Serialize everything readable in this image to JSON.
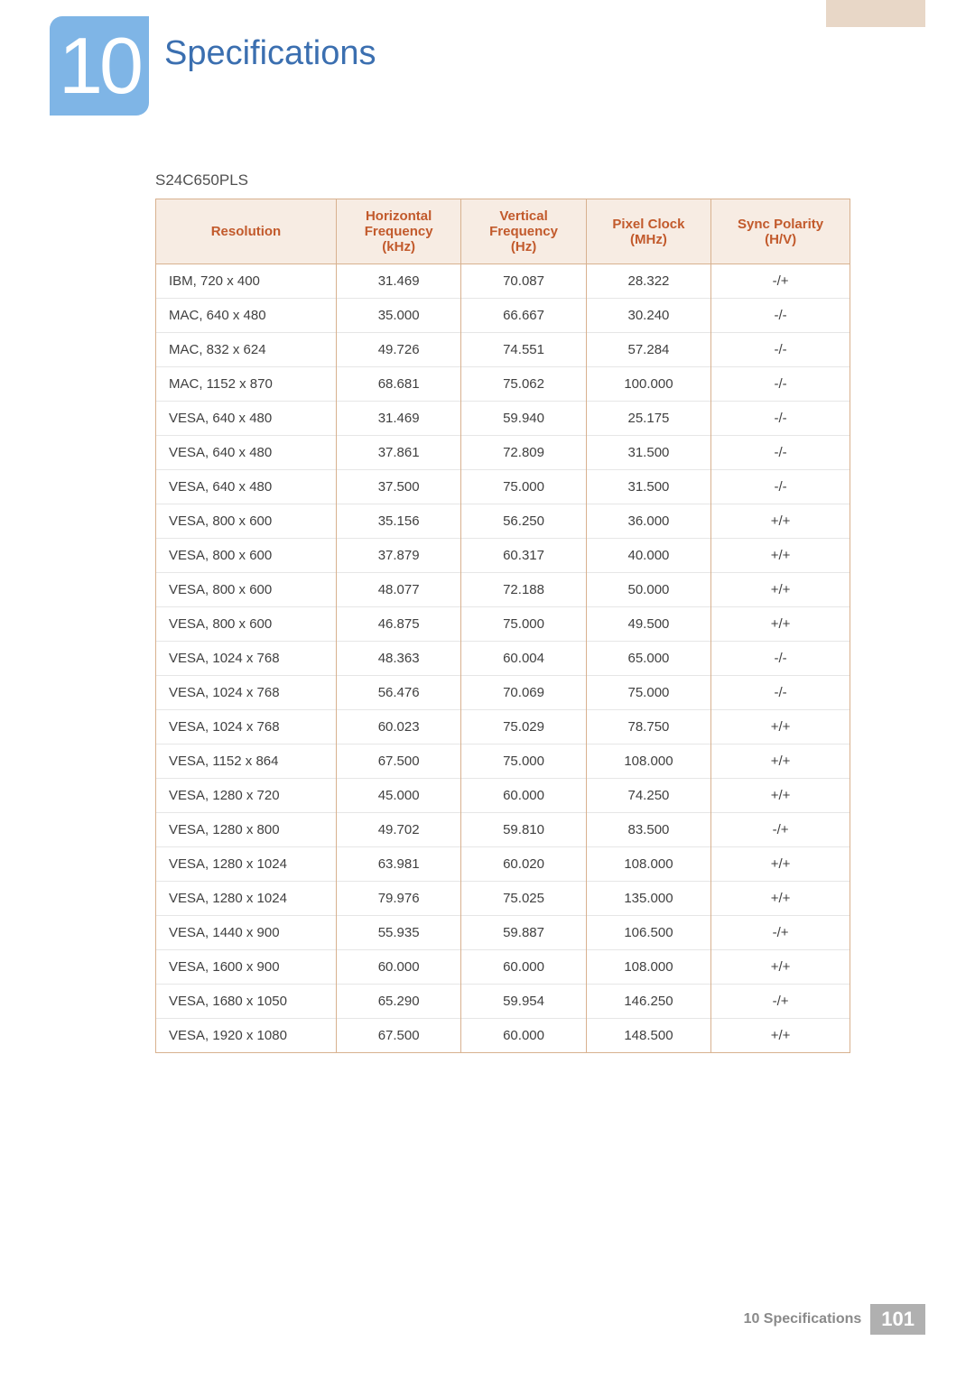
{
  "header": {
    "chapter_number": "10",
    "chapter_title": "Specifications",
    "chapter_block_bg": "#7fb5e6",
    "chapter_title_color": "#3b6fb0",
    "top_accent_bg": "#e8d7c7"
  },
  "model": "S24C650PLS",
  "table": {
    "header_bg": "#f7ece3",
    "header_text_color": "#c25a2c",
    "border_color": "#d8b18f",
    "row_divider_color": "#e6e6e6",
    "columns": [
      {
        "label_line1": "Resolution",
        "label_line2": "",
        "label_line3": "",
        "width_pct": 26,
        "align": "left"
      },
      {
        "label_line1": "Horizontal",
        "label_line2": "Frequency",
        "label_line3": "(kHz)",
        "width_pct": 18,
        "align": "center"
      },
      {
        "label_line1": "Vertical",
        "label_line2": "Frequency",
        "label_line3": "(Hz)",
        "width_pct": 18,
        "align": "center"
      },
      {
        "label_line1": "Pixel Clock",
        "label_line2": "(MHz)",
        "label_line3": "",
        "width_pct": 18,
        "align": "center"
      },
      {
        "label_line1": "Sync Polarity",
        "label_line2": "(H/V)",
        "label_line3": "",
        "width_pct": 20,
        "align": "center"
      }
    ],
    "rows": [
      [
        "IBM, 720 x 400",
        "31.469",
        "70.087",
        "28.322",
        "-/+"
      ],
      [
        "MAC, 640 x 480",
        "35.000",
        "66.667",
        "30.240",
        "-/-"
      ],
      [
        "MAC, 832 x 624",
        "49.726",
        "74.551",
        "57.284",
        "-/-"
      ],
      [
        "MAC, 1152 x 870",
        "68.681",
        "75.062",
        "100.000",
        "-/-"
      ],
      [
        "VESA, 640 x 480",
        "31.469",
        "59.940",
        "25.175",
        "-/-"
      ],
      [
        "VESA, 640 x 480",
        "37.861",
        "72.809",
        "31.500",
        "-/-"
      ],
      [
        "VESA, 640 x 480",
        "37.500",
        "75.000",
        "31.500",
        "-/-"
      ],
      [
        "VESA, 800 x 600",
        "35.156",
        "56.250",
        "36.000",
        "+/+"
      ],
      [
        "VESA, 800 x 600",
        "37.879",
        "60.317",
        "40.000",
        "+/+"
      ],
      [
        "VESA, 800 x 600",
        "48.077",
        "72.188",
        "50.000",
        "+/+"
      ],
      [
        "VESA, 800 x 600",
        "46.875",
        "75.000",
        "49.500",
        "+/+"
      ],
      [
        "VESA, 1024 x 768",
        "48.363",
        "60.004",
        "65.000",
        "-/-"
      ],
      [
        "VESA, 1024 x 768",
        "56.476",
        "70.069",
        "75.000",
        "-/-"
      ],
      [
        "VESA, 1024 x 768",
        "60.023",
        "75.029",
        "78.750",
        "+/+"
      ],
      [
        "VESA, 1152 x 864",
        "67.500",
        "75.000",
        "108.000",
        "+/+"
      ],
      [
        "VESA, 1280 x 720",
        "45.000",
        "60.000",
        "74.250",
        "+/+"
      ],
      [
        "VESA, 1280 x 800",
        "49.702",
        "59.810",
        "83.500",
        "-/+"
      ],
      [
        "VESA, 1280 x 1024",
        "63.981",
        "60.020",
        "108.000",
        "+/+"
      ],
      [
        "VESA, 1280 x 1024",
        "79.976",
        "75.025",
        "135.000",
        "+/+"
      ],
      [
        "VESA, 1440 x 900",
        "55.935",
        "59.887",
        "106.500",
        "-/+"
      ],
      [
        "VESA, 1600 x 900",
        "60.000",
        "60.000",
        "108.000",
        "+/+"
      ],
      [
        "VESA, 1680 x 1050",
        "65.290",
        "59.954",
        "146.250",
        "-/+"
      ],
      [
        "VESA, 1920 x 1080",
        "67.500",
        "60.000",
        "148.500",
        "+/+"
      ]
    ]
  },
  "footer": {
    "section_label": "10 Specifications",
    "page_number": "101",
    "pagebox_bg": "#b0b0b0",
    "label_color": "#8a8a8a"
  }
}
